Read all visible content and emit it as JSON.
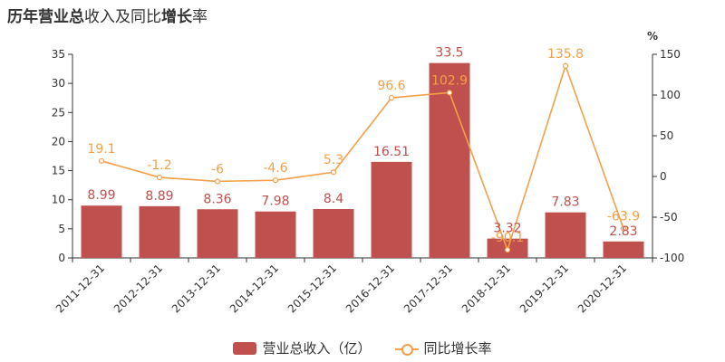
{
  "title": {
    "bold_a": "历年",
    "bold_b": "营业总",
    "plain_a": "收入及同比",
    "bold_c": "增长",
    "plain_b": "率"
  },
  "colors": {
    "bar": "#c0504d",
    "line": "#f4a04a",
    "bar_label": "#c0504d",
    "line_label": "#f4a04a"
  },
  "legend": {
    "bar_label": "营业总收入（亿）",
    "line_label": "同比增长率"
  },
  "chart_data": {
    "type": "bar+line",
    "categories": [
      "2011-12-31",
      "2012-12-31",
      "2013-12-31",
      "2014-12-31",
      "2015-12-31",
      "2016-12-31",
      "2017-12-31",
      "2018-12-31",
      "2019-12-31",
      "2020-12-31"
    ],
    "series": [
      {
        "name": "营业总收入（亿）",
        "type": "bar",
        "axis": "left",
        "values": [
          8.99,
          8.89,
          8.36,
          7.98,
          8.4,
          16.51,
          33.5,
          3.32,
          7.83,
          2.83
        ]
      },
      {
        "name": "同比增长率",
        "type": "line",
        "axis": "right",
        "values": [
          19.1,
          -1.2,
          -6,
          -4.6,
          5.3,
          96.6,
          102.9,
          -90.1,
          135.8,
          -63.9
        ]
      }
    ],
    "y_left": {
      "min": 0,
      "max": 35,
      "ticks": [
        0,
        5,
        10,
        15,
        20,
        25,
        30,
        35
      ]
    },
    "y_right": {
      "min": -100,
      "max": 150,
      "ticks": [
        -100,
        -50,
        0,
        50,
        100,
        150
      ],
      "unit": "%"
    },
    "legend_position": "bottom",
    "grid": false
  }
}
